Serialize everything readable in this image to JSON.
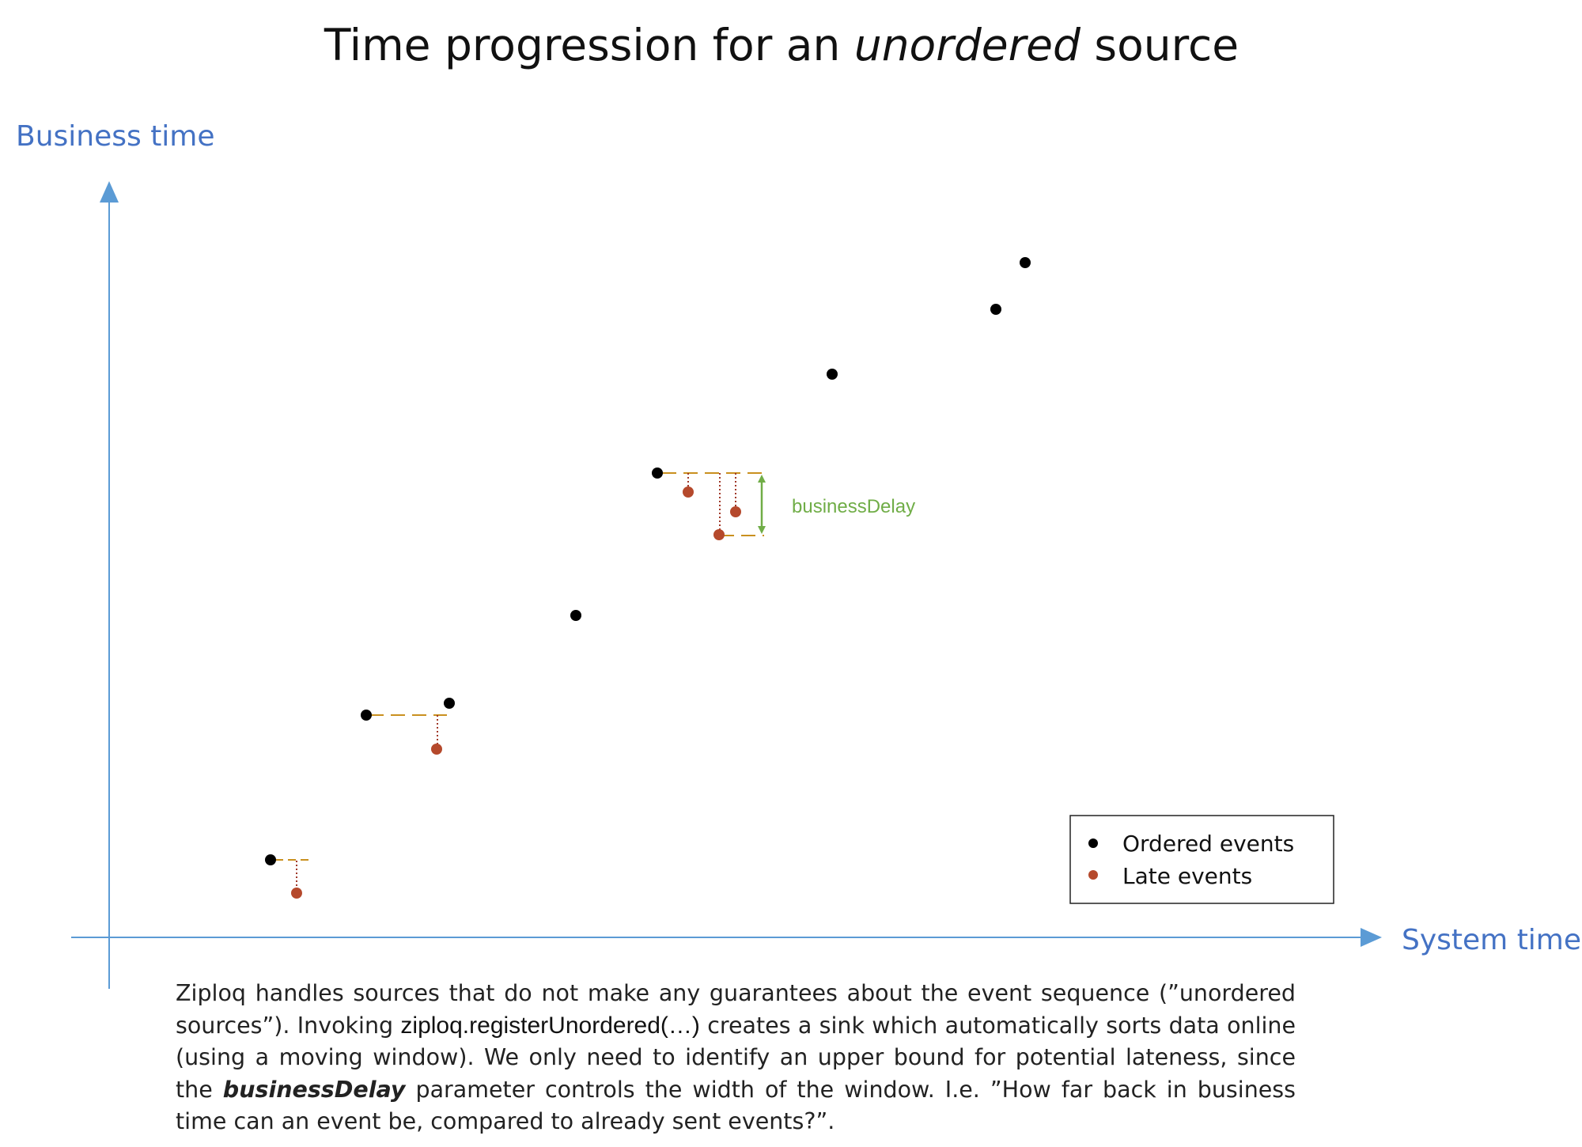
{
  "title": {
    "prefix": "Time progression for an ",
    "emphasis": "unordered",
    "suffix": " source"
  },
  "axes": {
    "y_label": "Business time",
    "x_label": "System time"
  },
  "annotation": {
    "label": "businessDelay"
  },
  "legend": {
    "position": "bottom-right",
    "items": [
      {
        "label": "Ordered events",
        "color": "#000000"
      },
      {
        "label": "Late events",
        "color": "#b5492c"
      }
    ]
  },
  "colors": {
    "axis": "#5b9bd5",
    "ordered": "#000000",
    "late": "#b5492c",
    "window_dash": "#c9901f",
    "late_link": "#a0392a",
    "delay_arrow": "#70ad47"
  },
  "description": {
    "part1": "Ziploq handles sources that do not make any guarantees about the event sequence (”unordered sources”). Invoking ",
    "code": "ziploq.registerUnordered(…)",
    "part2": " creates a sink which automatically sorts data online (using a moving window). We only need to identify an upper bound for potential lateness, since the ",
    "param": "businessDelay",
    "part3": " parameter controls the width of the window. I.e. ”How far back in business time can an event be, compared to already sent events?”."
  }
}
